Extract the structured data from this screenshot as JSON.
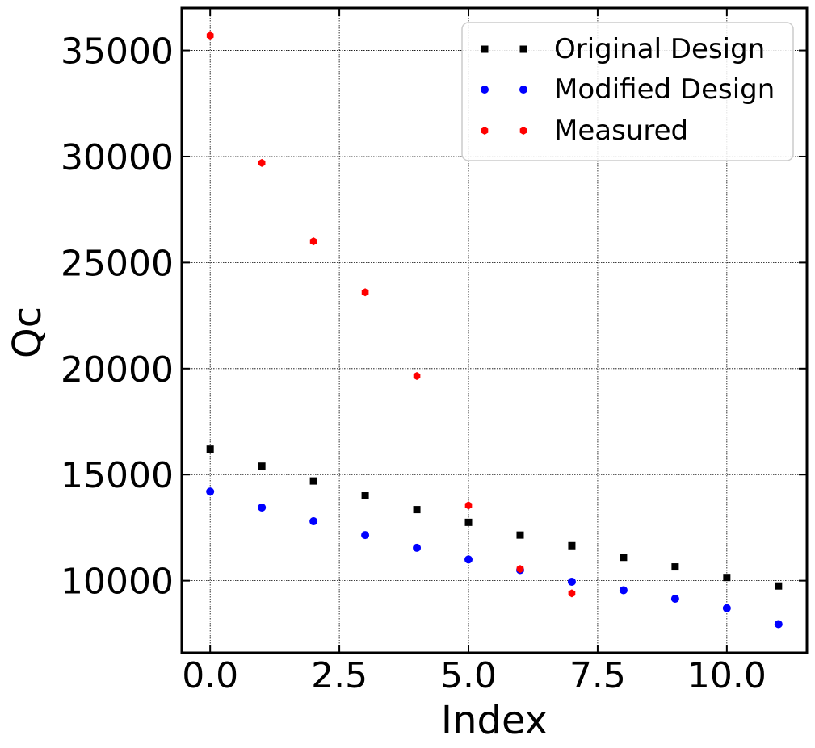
{
  "chart_data": {
    "type": "scatter",
    "xlabel": "Index",
    "ylabel": "Qc",
    "xlim": [
      -0.55,
      11.55
    ],
    "ylim": [
      6600,
      37000
    ],
    "xticks": [
      0.0,
      2.5,
      5.0,
      7.5,
      10.0
    ],
    "xtick_labels": [
      "0.0",
      "2.5",
      "5.0",
      "7.5",
      "10.0"
    ],
    "yticks": [
      10000,
      15000,
      20000,
      25000,
      30000,
      35000
    ],
    "ytick_labels": [
      "10000",
      "15000",
      "20000",
      "25000",
      "30000",
      "35000"
    ],
    "grid": true,
    "legend_position": "upper-right",
    "series": [
      {
        "name": "Original Design",
        "marker": "square",
        "color": "#000000",
        "x": [
          0,
          1,
          2,
          3,
          4,
          5,
          6,
          7,
          8,
          9,
          10,
          11
        ],
        "y": [
          16200,
          15400,
          14700,
          14000,
          13350,
          12750,
          12150,
          11650,
          11100,
          10650,
          10150,
          9750
        ]
      },
      {
        "name": "Modified Design",
        "marker": "circle",
        "color": "#0000ff",
        "x": [
          0,
          1,
          2,
          3,
          4,
          5,
          6,
          7,
          8,
          9,
          10,
          11
        ],
        "y": [
          14200,
          13450,
          12800,
          12150,
          11550,
          11000,
          10500,
          9950,
          9550,
          9150,
          8700,
          7950
        ]
      },
      {
        "name": "Measured",
        "marker": "hexagon",
        "color": "#ff0000",
        "x": [
          0,
          1,
          2,
          3,
          4,
          5,
          6,
          7
        ],
        "y": [
          35700,
          29700,
          26000,
          23600,
          19650,
          13550,
          10550,
          9400
        ]
      }
    ]
  }
}
